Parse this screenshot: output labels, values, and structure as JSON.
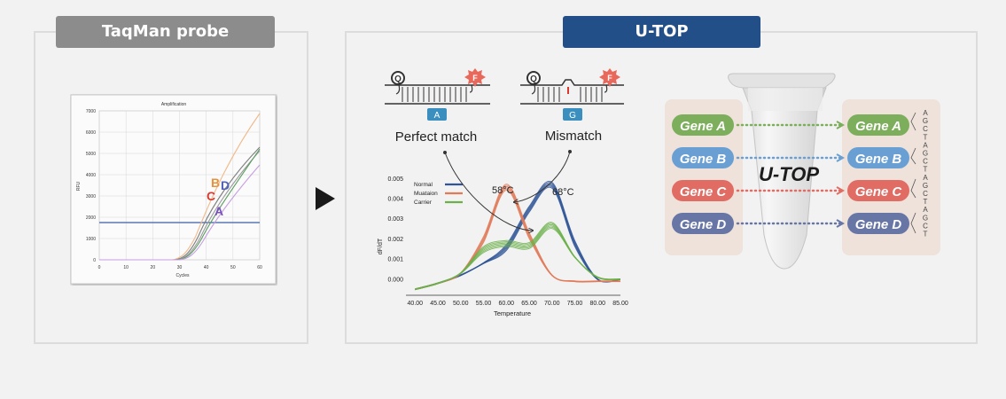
{
  "left_panel": {
    "title": "TaqMan probe"
  },
  "right_panel": {
    "title": "U-TOP"
  },
  "colors": {
    "left_tab": "#8c8c8c",
    "right_tab": "#234f88",
    "normal": "#2f5597",
    "mutation": "#e07b5a",
    "carrier": "#6bb04a",
    "geneA": "#7cae5b",
    "geneB": "#6a9fd3",
    "geneC": "#e06c64",
    "geneD": "#6876a6"
  },
  "taqman_chart": {
    "title": "Amplification",
    "xlabel": "Cycles",
    "ylabel": "RFU",
    "yticks": [
      "7000",
      "6000",
      "5000",
      "4000",
      "3000",
      "2000",
      "1000",
      "0"
    ],
    "xticks": [
      "0",
      "10",
      "20",
      "30",
      "40",
      "50",
      "60"
    ],
    "curve_labels": [
      "A",
      "B",
      "C",
      "D"
    ]
  },
  "probes": {
    "quencher": "Q",
    "fluorophore": "F",
    "perfect": {
      "base": "A",
      "label": "Perfect match"
    },
    "mismatch": {
      "base": "G",
      "label": "Mismatch"
    }
  },
  "chart_data": {
    "type": "line",
    "xlabel": "Temperature",
    "ylabel": "dF/dT",
    "x": [
      40,
      45,
      50,
      55,
      60,
      65,
      70,
      75,
      80,
      85
    ],
    "xticks": [
      "40.00",
      "45.00",
      "50.00",
      "55.00",
      "60.00",
      "65.00",
      "70.00",
      "75.00",
      "80.00",
      "85.00"
    ],
    "yticks": [
      "0.005",
      "0.004",
      "0.003",
      "0.002",
      "0.001",
      "0.000"
    ],
    "xlim": [
      38,
      85
    ],
    "ylim": [
      -0.0008,
      0.0055
    ],
    "legend_position": "top-left",
    "series": [
      {
        "name": "Normal",
        "values": [
          -0.0005,
          -0.0002,
          0.0002,
          0.0008,
          0.0016,
          0.0035,
          0.0047,
          0.0018,
          0.0,
          0.0
        ]
      },
      {
        "name": "Muataion",
        "values": [
          -0.0005,
          -0.0002,
          0.0003,
          0.002,
          0.0046,
          0.0022,
          0.0002,
          -0.0001,
          -0.0001,
          -0.0001
        ]
      },
      {
        "name": "Carrier",
        "values": [
          -0.0005,
          -0.0002,
          0.0003,
          0.0015,
          0.0018,
          0.0017,
          0.0027,
          0.0011,
          0.0001,
          0.0
        ]
      }
    ],
    "annotations": [
      "58°C",
      "68°C"
    ]
  },
  "utop": {
    "label": "U-TOP",
    "genes": [
      "Gene A",
      "Gene B",
      "Gene C",
      "Gene D"
    ],
    "sequence": [
      "A",
      "G",
      "C",
      "T",
      "A",
      "G",
      "C",
      "T",
      "A",
      "G",
      "C",
      "T",
      "A",
      "G",
      "C",
      "T"
    ]
  }
}
